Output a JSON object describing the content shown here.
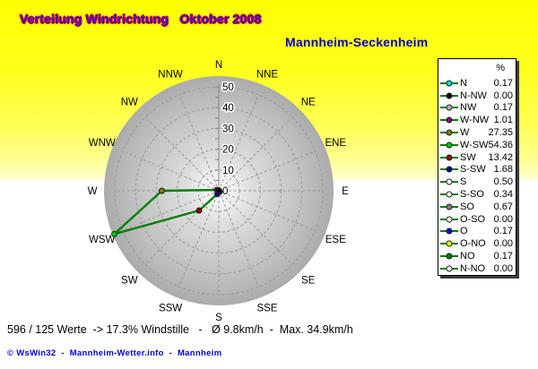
{
  "header": {
    "title": "Verteilung Windrichtung   Oktober 2008",
    "title_color": "#1a1ae6",
    "title_outline_color": "#ff0000",
    "station": "Mannheim-Seckenheim",
    "station_color": "#0000c8"
  },
  "footer": {
    "stats": "596 / 125 Werte  -> 17.3% Windstille   -   Ø 9.8km/h  -  Max. 34.9km/h",
    "stats_parts": {
      "werte": "596 / 125",
      "windstille_percent": "17.3",
      "avg_kmh": "9.8",
      "max_kmh": "34.9"
    },
    "credit": "© WsWin32  -  Mannheim-Wetter.info  -  Mannheim",
    "credit_color": "#0000e6"
  },
  "chart_data": {
    "type": "line",
    "subtype": "polar-wind-rose",
    "title": "Verteilung Windrichtung Oktober 2008",
    "station": "Mannheim-Seckenheim",
    "unit": "%",
    "legend_header": "%",
    "legend_position": "right",
    "grid": "dashed circles every 10% with 16 dashed spokes",
    "radial_axis": {
      "min": 0,
      "max": 50,
      "tick_interval": 10,
      "tick_labels": [
        "0",
        "10",
        "20",
        "30",
        "40",
        "50"
      ]
    },
    "compass_labels_clockwise": [
      "N",
      "NNE",
      "NE",
      "ENE",
      "E",
      "ESE",
      "SE",
      "SSE",
      "S",
      "SSW",
      "SW",
      "WSW",
      "W",
      "WNW",
      "NW",
      "NNW"
    ],
    "line_color": "#008000",
    "series": [
      {
        "label": "N",
        "value": "0.17",
        "marker_color": "#00dcdc"
      },
      {
        "label": "N-NW",
        "value": "0.00",
        "marker_color": "#000000"
      },
      {
        "label": "NW",
        "value": "0.17",
        "marker_color": "#b4b4b4"
      },
      {
        "label": "W-NW",
        "value": "1.01",
        "marker_color": "#900090"
      },
      {
        "label": "W",
        "value": "27.35",
        "marker_color": "#808000"
      },
      {
        "label": "W-SW",
        "value": "54.36",
        "marker_color": "#00c800"
      },
      {
        "label": "SW",
        "value": "13.42",
        "marker_color": "#980000"
      },
      {
        "label": "S-SW",
        "value": "1.68",
        "marker_color": "#000090"
      },
      {
        "label": "S",
        "value": "0.50",
        "marker_color": "#ffffff"
      },
      {
        "label": "S-SO",
        "value": "0.34",
        "marker_color": "#ffffff"
      },
      {
        "label": "SO",
        "value": "0.67",
        "marker_color": "#808080"
      },
      {
        "label": "O-SO",
        "value": "0.00",
        "marker_color": "#ffffff"
      },
      {
        "label": "O",
        "value": "0.17",
        "marker_color": "#0000f0"
      },
      {
        "label": "O-NO",
        "value": "0.00",
        "marker_color": "#ffff00"
      },
      {
        "label": "NO",
        "value": "0.17",
        "marker_color": "#008000"
      },
      {
        "label": "N-NO",
        "value": "0.00",
        "marker_color": "#ffffff"
      }
    ],
    "series_order_note": "legend order is counterclockwise from N",
    "values_clockwise_from_north": [
      0.17,
      0.0,
      0.17,
      0.0,
      0.17,
      0.0,
      0.67,
      0.34,
      0.5,
      1.68,
      13.42,
      54.36,
      27.35,
      1.01,
      0.17,
      0.0
    ]
  }
}
